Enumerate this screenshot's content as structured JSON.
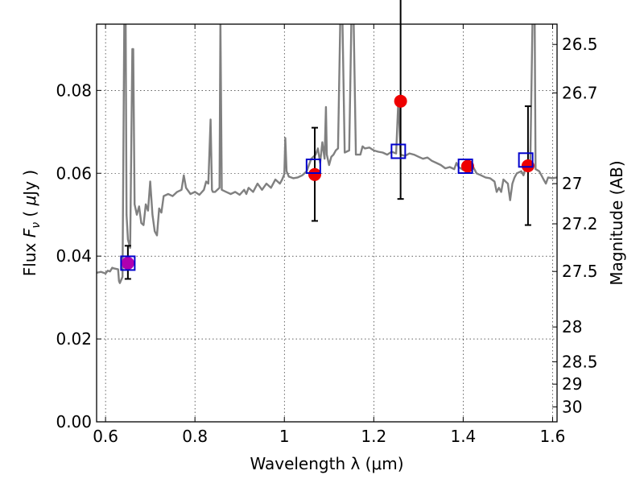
{
  "chart_data": {
    "type": "scatter",
    "xlabel": "Wavelength  λ (μm)",
    "ylabel_parts": [
      "Flux  ",
      "F",
      "ν",
      "  (  ",
      "μ",
      "Jy  )"
    ],
    "y2label": "Magnitude (AB)",
    "xlim": [
      0.58,
      1.61
    ],
    "ylim": [
      0.0,
      0.096
    ],
    "grid": true,
    "x_ticks": [
      {
        "value": 0.6,
        "label": "0.6"
      },
      {
        "value": 0.8,
        "label": "0.8"
      },
      {
        "value": 1.0,
        "label": "1"
      },
      {
        "value": 1.2,
        "label": "1.2"
      },
      {
        "value": 1.4,
        "label": "1.4"
      },
      {
        "value": 1.6,
        "label": "1.6"
      }
    ],
    "y_ticks": [
      {
        "value": 0.0,
        "label": "0.00"
      },
      {
        "value": 0.02,
        "label": "0.02"
      },
      {
        "value": 0.04,
        "label": "0.04"
      },
      {
        "value": 0.06,
        "label": "0.06"
      },
      {
        "value": 0.08,
        "label": "0.08"
      }
    ],
    "y2_ticks": [
      {
        "flux": 0.0911,
        "label": "26.5"
      },
      {
        "flux": 0.0794,
        "label": "26.7"
      },
      {
        "flux": 0.0575,
        "label": "27"
      },
      {
        "flux": 0.0478,
        "label": "27.2"
      },
      {
        "flux": 0.0363,
        "label": "27.5"
      },
      {
        "flux": 0.0229,
        "label": "28"
      },
      {
        "flux": 0.0145,
        "label": "28.5"
      },
      {
        "flux": 0.0091,
        "label": "29"
      },
      {
        "flux": 0.0036,
        "label": "30"
      }
    ],
    "model_spectrum": {
      "color": "#808080",
      "points": [
        [
          0.58,
          0.036
        ],
        [
          0.59,
          0.0362
        ],
        [
          0.6,
          0.0358
        ],
        [
          0.605,
          0.0365
        ],
        [
          0.61,
          0.0363
        ],
        [
          0.615,
          0.0372
        ],
        [
          0.62,
          0.037
        ],
        [
          0.628,
          0.0368
        ],
        [
          0.63,
          0.034
        ],
        [
          0.632,
          0.0335
        ],
        [
          0.638,
          0.035
        ],
        [
          0.642,
          0.097
        ],
        [
          0.645,
          0.097
        ],
        [
          0.647,
          0.05
        ],
        [
          0.65,
          0.044
        ],
        [
          0.655,
          0.042
        ],
        [
          0.66,
          0.09
        ],
        [
          0.662,
          0.09
        ],
        [
          0.665,
          0.0525
        ],
        [
          0.67,
          0.05
        ],
        [
          0.675,
          0.052
        ],
        [
          0.68,
          0.048
        ],
        [
          0.685,
          0.0475
        ],
        [
          0.69,
          0.0525
        ],
        [
          0.695,
          0.051
        ],
        [
          0.7,
          0.058
        ],
        [
          0.705,
          0.05
        ],
        [
          0.71,
          0.046
        ],
        [
          0.715,
          0.045
        ],
        [
          0.72,
          0.0515
        ],
        [
          0.725,
          0.0505
        ],
        [
          0.73,
          0.0545
        ],
        [
          0.74,
          0.055
        ],
        [
          0.75,
          0.0545
        ],
        [
          0.76,
          0.0555
        ],
        [
          0.77,
          0.056
        ],
        [
          0.775,
          0.0595
        ],
        [
          0.78,
          0.0565
        ],
        [
          0.79,
          0.055
        ],
        [
          0.8,
          0.0555
        ],
        [
          0.81,
          0.0548
        ],
        [
          0.82,
          0.056
        ],
        [
          0.825,
          0.058
        ],
        [
          0.83,
          0.0575
        ],
        [
          0.835,
          0.073
        ],
        [
          0.838,
          0.056
        ],
        [
          0.84,
          0.0555
        ],
        [
          0.845,
          0.0555
        ],
        [
          0.855,
          0.0565
        ],
        [
          0.857,
          0.097
        ],
        [
          0.86,
          0.056
        ],
        [
          0.87,
          0.0555
        ],
        [
          0.88,
          0.055
        ],
        [
          0.89,
          0.0555
        ],
        [
          0.9,
          0.0548
        ],
        [
          0.91,
          0.056
        ],
        [
          0.915,
          0.055
        ],
        [
          0.92,
          0.0565
        ],
        [
          0.93,
          0.0555
        ],
        [
          0.94,
          0.0575
        ],
        [
          0.95,
          0.056
        ],
        [
          0.96,
          0.0575
        ],
        [
          0.97,
          0.0565
        ],
        [
          0.98,
          0.0585
        ],
        [
          0.99,
          0.0575
        ],
        [
          0.995,
          0.0585
        ],
        [
          1.0,
          0.0598
        ],
        [
          1.002,
          0.0685
        ],
        [
          1.005,
          0.0605
        ],
        [
          1.01,
          0.0592
        ],
        [
          1.02,
          0.0588
        ],
        [
          1.03,
          0.059
        ],
        [
          1.04,
          0.0595
        ],
        [
          1.05,
          0.0605
        ],
        [
          1.06,
          0.0635
        ],
        [
          1.07,
          0.0645
        ],
        [
          1.075,
          0.066
        ],
        [
          1.08,
          0.0625
        ],
        [
          1.085,
          0.0675
        ],
        [
          1.09,
          0.0635
        ],
        [
          1.093,
          0.076
        ],
        [
          1.095,
          0.0645
        ],
        [
          1.1,
          0.062
        ],
        [
          1.105,
          0.064
        ],
        [
          1.11,
          0.0645
        ],
        [
          1.115,
          0.0655
        ],
        [
          1.12,
          0.066
        ],
        [
          1.125,
          0.097
        ],
        [
          1.13,
          0.097
        ],
        [
          1.135,
          0.065
        ],
        [
          1.145,
          0.0655
        ],
        [
          1.15,
          0.097
        ],
        [
          1.155,
          0.097
        ],
        [
          1.16,
          0.0645
        ],
        [
          1.17,
          0.0645
        ],
        [
          1.175,
          0.0665
        ],
        [
          1.18,
          0.066
        ],
        [
          1.19,
          0.0662
        ],
        [
          1.2,
          0.0655
        ],
        [
          1.21,
          0.0652
        ],
        [
          1.22,
          0.065
        ],
        [
          1.23,
          0.0645
        ],
        [
          1.24,
          0.0652
        ],
        [
          1.25,
          0.0648
        ],
        [
          1.255,
          0.078
        ],
        [
          1.26,
          0.0645
        ],
        [
          1.27,
          0.0642
        ],
        [
          1.28,
          0.0648
        ],
        [
          1.29,
          0.0645
        ],
        [
          1.3,
          0.064
        ],
        [
          1.31,
          0.0635
        ],
        [
          1.32,
          0.0638
        ],
        [
          1.33,
          0.063
        ],
        [
          1.34,
          0.0625
        ],
        [
          1.35,
          0.062
        ],
        [
          1.36,
          0.0612
        ],
        [
          1.37,
          0.0615
        ],
        [
          1.38,
          0.061
        ],
        [
          1.385,
          0.0625
        ],
        [
          1.39,
          0.0615
        ],
        [
          1.4,
          0.0608
        ],
        [
          1.41,
          0.061
        ],
        [
          1.42,
          0.062
        ],
        [
          1.43,
          0.06
        ],
        [
          1.44,
          0.0595
        ],
        [
          1.45,
          0.059
        ],
        [
          1.46,
          0.0588
        ],
        [
          1.47,
          0.058
        ],
        [
          1.475,
          0.0555
        ],
        [
          1.48,
          0.0565
        ],
        [
          1.485,
          0.0555
        ],
        [
          1.49,
          0.0585
        ],
        [
          1.5,
          0.0575
        ],
        [
          1.505,
          0.0535
        ],
        [
          1.51,
          0.0575
        ],
        [
          1.515,
          0.059
        ],
        [
          1.52,
          0.06
        ],
        [
          1.53,
          0.0605
        ],
        [
          1.535,
          0.0595
        ],
        [
          1.54,
          0.0615
        ],
        [
          1.545,
          0.0605
        ],
        [
          1.55,
          0.0615
        ],
        [
          1.555,
          0.097
        ],
        [
          1.56,
          0.097
        ],
        [
          1.562,
          0.061
        ],
        [
          1.57,
          0.0605
        ],
        [
          1.575,
          0.0595
        ],
        [
          1.58,
          0.0585
        ],
        [
          1.585,
          0.0575
        ],
        [
          1.59,
          0.059
        ],
        [
          1.6,
          0.0588
        ],
        [
          1.61,
          0.059
        ]
      ]
    },
    "model_photometry": {
      "marker": "open-square",
      "color": "#0000cc",
      "points": [
        {
          "x": 0.65,
          "y": 0.0383
        },
        {
          "x": 1.065,
          "y": 0.0617
        },
        {
          "x": 1.255,
          "y": 0.0653
        },
        {
          "x": 1.405,
          "y": 0.0617
        },
        {
          "x": 1.54,
          "y": 0.0632
        }
      ]
    },
    "observed": {
      "marker": "filled-circle",
      "points": [
        {
          "x": 0.65,
          "y": 0.0383,
          "yerr_low": 0.0038,
          "yerr_high": 0.0042,
          "color": "#b000b0"
        },
        {
          "x": 1.068,
          "y": 0.0597,
          "yerr_low": 0.0112,
          "yerr_high": 0.0113,
          "color": "#ee0000"
        },
        {
          "x": 1.26,
          "y": 0.0774,
          "yerr_low": 0.0236,
          "yerr_high": 0.0256,
          "color": "#ee0000"
        },
        {
          "x": 1.41,
          "y": 0.0617,
          "color": "#ee0000"
        },
        {
          "x": 1.545,
          "y": 0.0618,
          "yerr_low": 0.0143,
          "yerr_high": 0.0144,
          "color": "#ee0000"
        }
      ]
    }
  }
}
